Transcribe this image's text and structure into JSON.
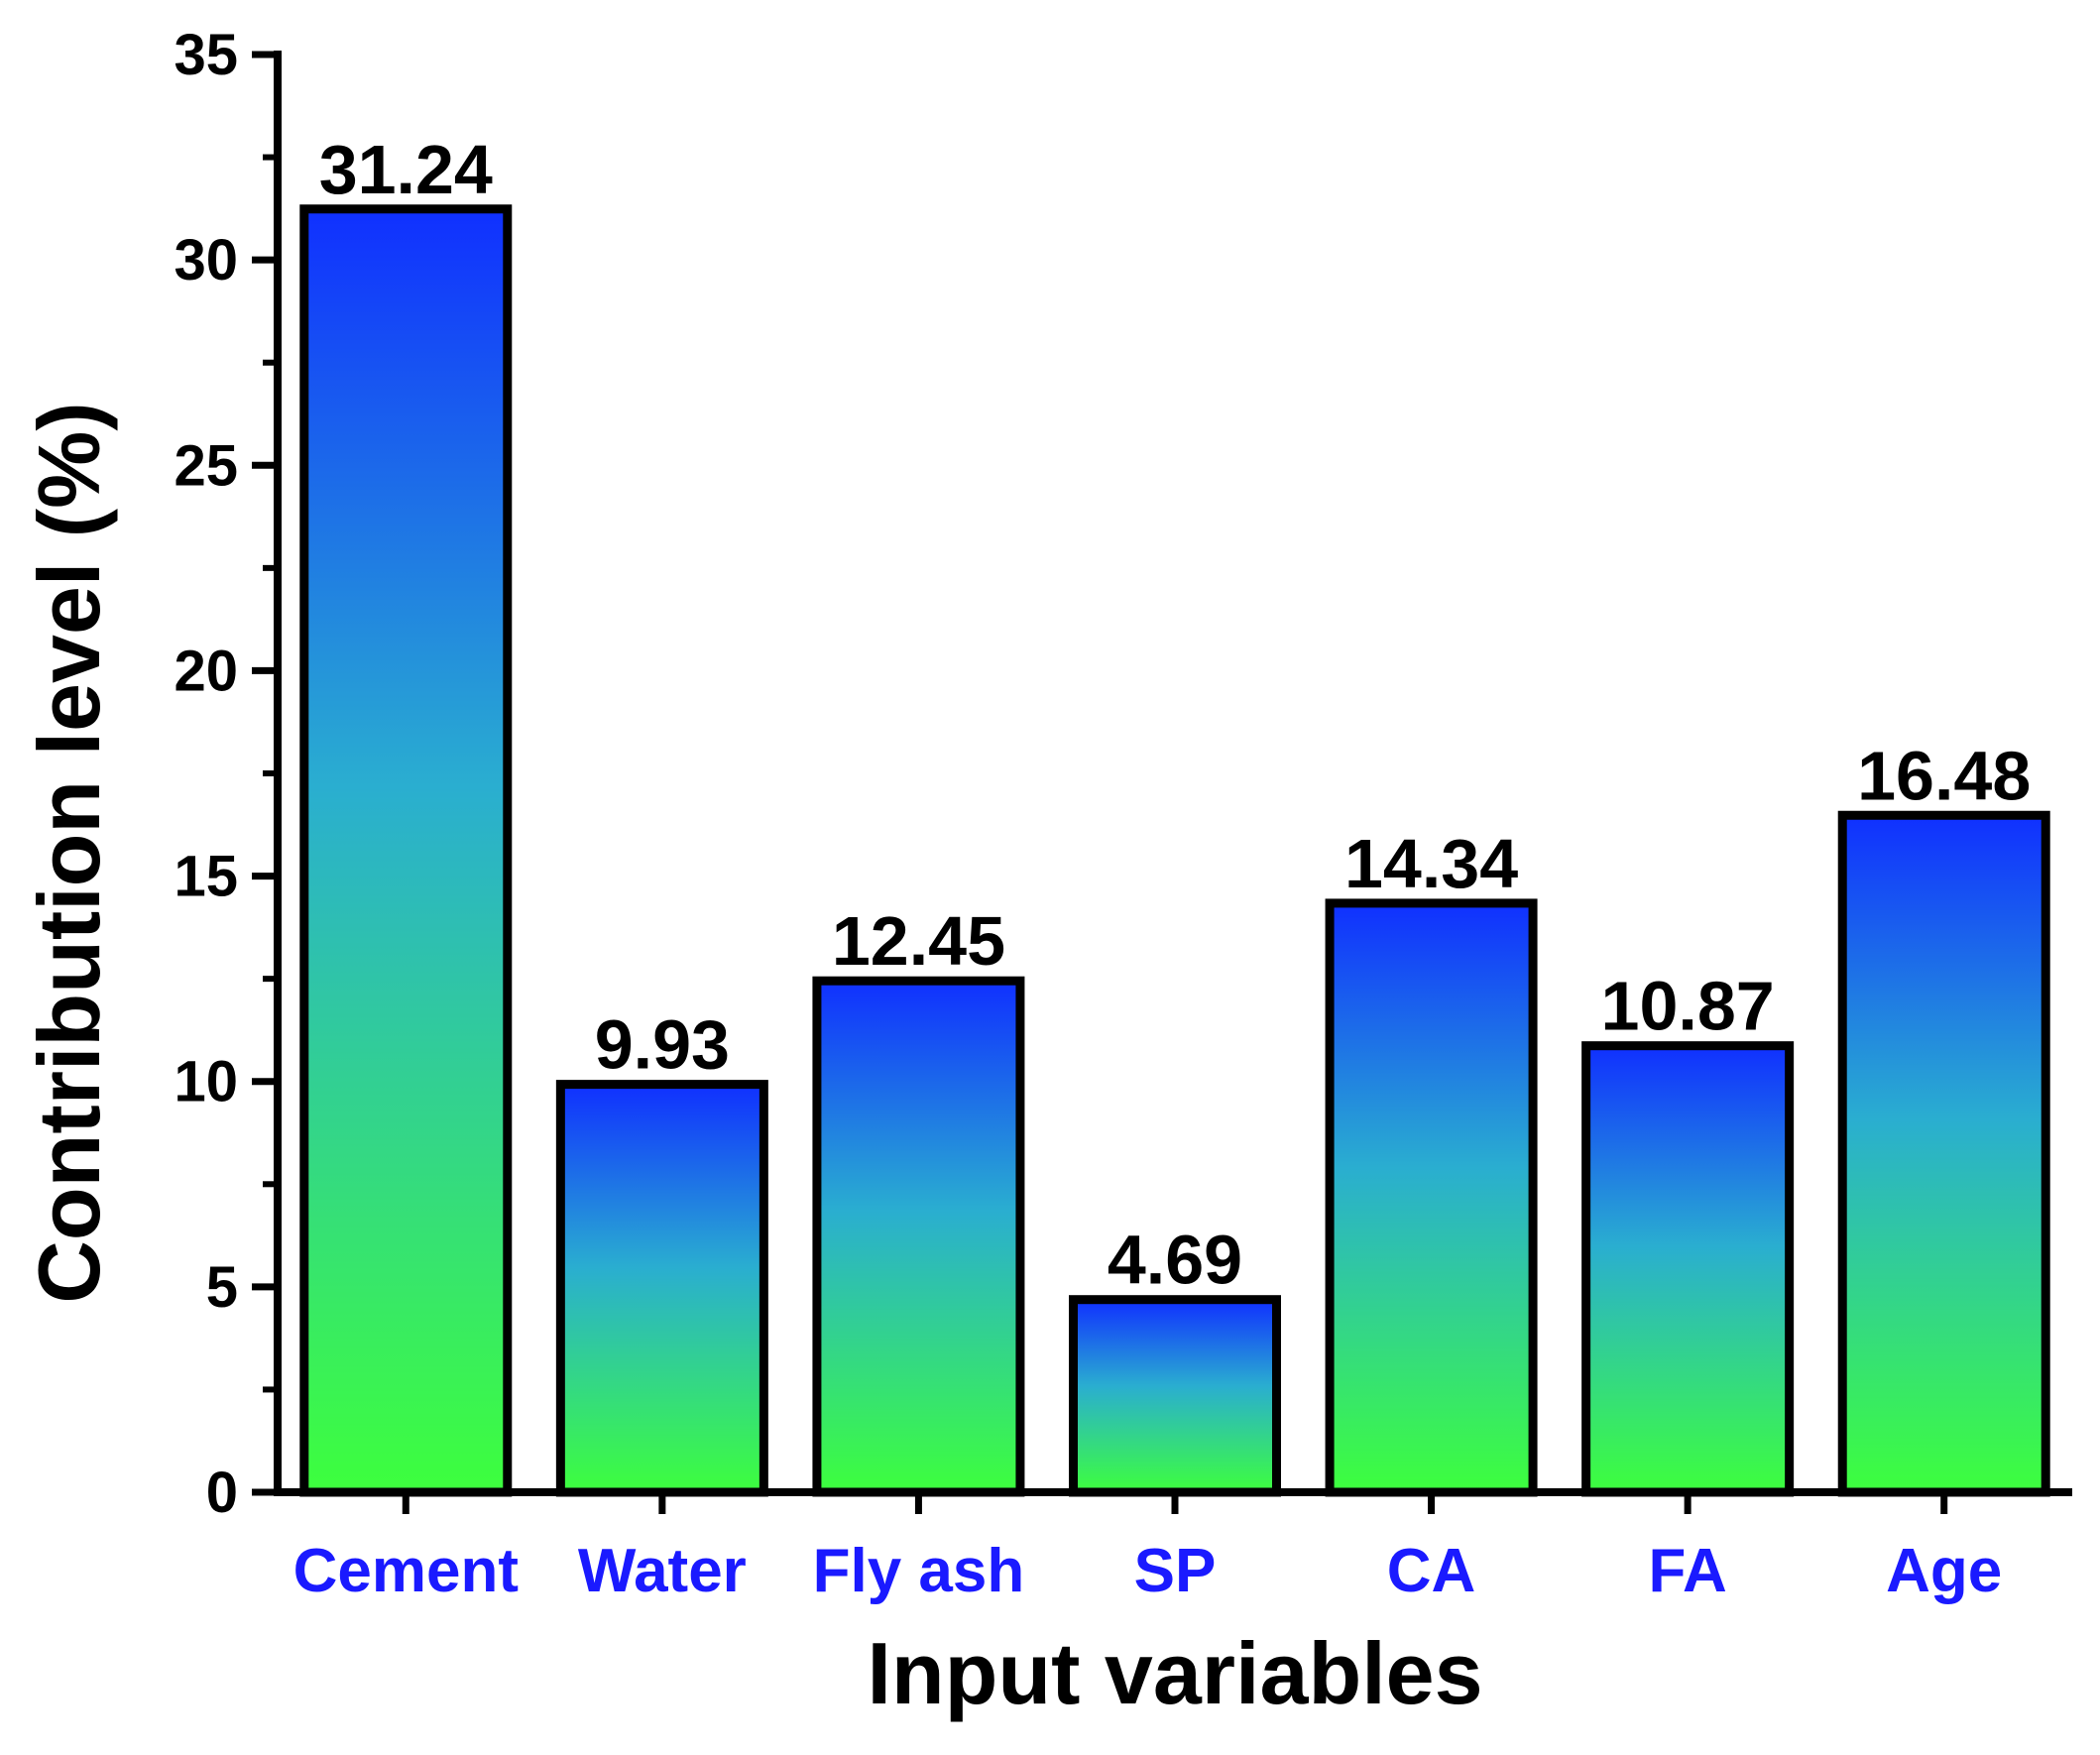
{
  "chart_data": {
    "type": "bar",
    "categories": [
      "Cement",
      "Water",
      "Fly ash",
      "SP",
      "CA",
      "FA",
      "Age"
    ],
    "values": [
      31.24,
      9.93,
      12.45,
      4.69,
      14.34,
      10.87,
      16.48
    ],
    "value_labels": [
      "31.24",
      "9.93",
      "12.45",
      "4.69",
      "14.34",
      "10.87",
      "16.48"
    ],
    "title": "",
    "xlabel": "Input variables",
    "ylabel": "Contribution level (%)",
    "ylim": [
      0,
      35
    ],
    "yticks": [
      0,
      5,
      10,
      15,
      20,
      25,
      30,
      35
    ],
    "ytick_labels": [
      "0",
      "5",
      "10",
      "15",
      "20",
      "25",
      "30",
      "35"
    ],
    "grid": false,
    "legend": "none",
    "colors": {
      "bar_top": "#1030ff",
      "bar_middle": "#2aaed0",
      "bar_bottom": "#3dff3d",
      "bar_outline": "#000000",
      "category_label": "#1a1aff",
      "axis": "#000000"
    }
  }
}
